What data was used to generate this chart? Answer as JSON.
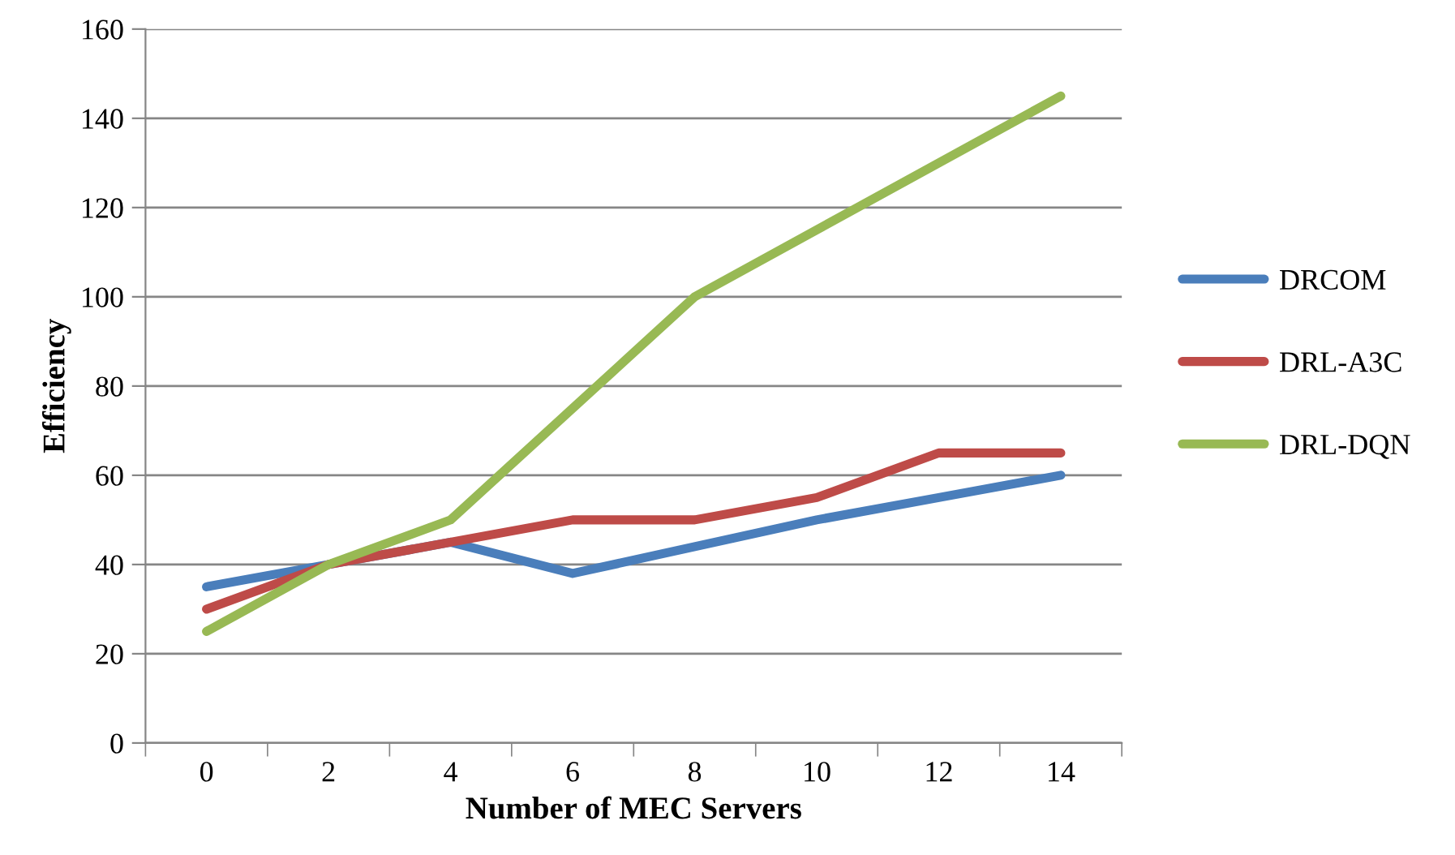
{
  "chart_data": {
    "type": "line",
    "xlabel": "Number of MEC Servers",
    "ylabel": "Efficiency",
    "categories": [
      "0",
      "2",
      "4",
      "6",
      "8",
      "10",
      "12",
      "14"
    ],
    "series": [
      {
        "name": "DRCOM",
        "color": "#4a7ebb",
        "values": [
          35,
          40,
          45,
          38,
          44,
          50,
          55,
          60
        ]
      },
      {
        "name": "DRL-A3C",
        "color": "#be4b48",
        "values": [
          30,
          40,
          45,
          50,
          50,
          55,
          65,
          65
        ]
      },
      {
        "name": "DRL-DQN",
        "color": "#98b954",
        "values": [
          25,
          40,
          50,
          75,
          100,
          115,
          130,
          145
        ]
      }
    ],
    "ylim": [
      0,
      160
    ],
    "yticks": [
      0,
      20,
      40,
      60,
      80,
      100,
      120,
      140,
      160
    ],
    "grid": "y",
    "legend": "right",
    "marker": "none",
    "line_style": "solid"
  }
}
